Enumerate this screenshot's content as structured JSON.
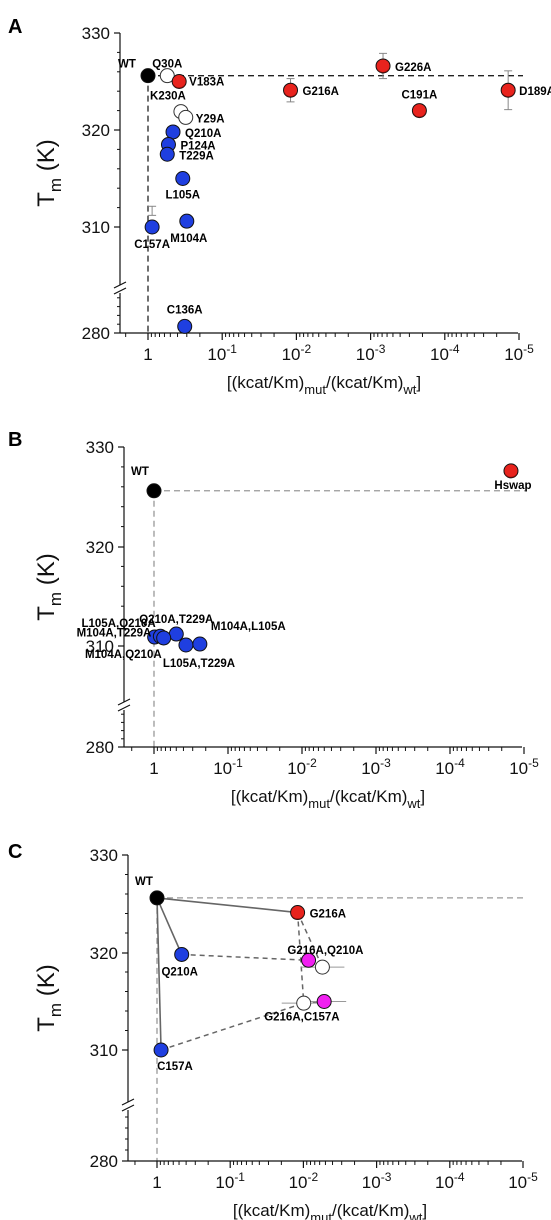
{
  "chart_data": [
    {
      "panel": "A",
      "type": "scatter",
      "xlabel": {
        "pre": "[(kcat/Km)",
        "sub1": "mut",
        "mid": "/(kcat/Km)",
        "sub2": "wt",
        "post": "]"
      },
      "ylabel": {
        "main": "T",
        "sub": "m",
        "unit": "(K)"
      },
      "x_log_scale": "reversed",
      "x_ticks": [
        {
          "base": "1",
          "exp": ""
        },
        {
          "base": "10",
          "exp": "-1"
        },
        {
          "base": "10",
          "exp": "-2"
        },
        {
          "base": "10",
          "exp": "-3"
        },
        {
          "base": "10",
          "exp": "-4"
        },
        {
          "base": "10",
          "exp": "-5"
        }
      ],
      "y_ticks": [
        "330",
        "320",
        "310",
        "280"
      ],
      "y_axis_break": true,
      "reference_lines": {
        "wt_tm": 325.6,
        "wt_x": 1
      },
      "points": [
        {
          "label": "WT",
          "x": 1,
          "y": 325.6,
          "color": "#000000"
        },
        {
          "label": "Q30A",
          "x": 0.55,
          "y": 325.6,
          "color": "#ffffff"
        },
        {
          "label": "V183A",
          "x": 0.38,
          "y": 325.0,
          "color": "#e8231d"
        },
        {
          "label": "K230A",
          "x": 0.36,
          "y": 321.9,
          "color": "#ffffff"
        },
        {
          "label": "Y29A",
          "x": 0.31,
          "y": 321.3,
          "color": "#ffffff"
        },
        {
          "label": "Q210A",
          "x": 0.46,
          "y": 319.8,
          "color": "#1f3fe0"
        },
        {
          "label": "P124A",
          "x": 0.53,
          "y": 318.5,
          "color": "#1f3fe0"
        },
        {
          "label": "T229A",
          "x": 0.55,
          "y": 317.5,
          "color": "#1f3fe0"
        },
        {
          "label": "L105A",
          "x": 0.34,
          "y": 315.0,
          "color": "#1f3fe0"
        },
        {
          "label": "C157A",
          "x": 0.88,
          "y": 310.0,
          "color": "#1f3fe0"
        },
        {
          "label": "M104A",
          "x": 0.3,
          "y": 310.6,
          "color": "#1f3fe0"
        },
        {
          "label": "C136A",
          "x": 0.32,
          "y": 281.5,
          "color": "#1f3fe0"
        },
        {
          "label": "G216A",
          "x": 0.012,
          "y": 324.1,
          "color": "#e8231d"
        },
        {
          "label": "G226A",
          "x": 0.00068,
          "y": 326.6,
          "color": "#e8231d"
        },
        {
          "label": "C191A",
          "x": 0.00022,
          "y": 322.0,
          "color": "#e8231d"
        },
        {
          "label": "D189A",
          "x": 1.4e-05,
          "y": 324.1,
          "color": "#e8231d"
        }
      ]
    },
    {
      "panel": "B",
      "type": "scatter",
      "xlabel": {
        "pre": "[(kcat/Km)",
        "sub1": "mut",
        "mid": "/(kcat/Km)",
        "sub2": "wt",
        "post": "]"
      },
      "ylabel": {
        "main": "T",
        "sub": "m",
        "unit": "(K)"
      },
      "x_log_scale": "reversed",
      "x_ticks": [
        {
          "base": "1",
          "exp": ""
        },
        {
          "base": "10",
          "exp": "-1"
        },
        {
          "base": "10",
          "exp": "-2"
        },
        {
          "base": "10",
          "exp": "-3"
        },
        {
          "base": "10",
          "exp": "-4"
        },
        {
          "base": "10",
          "exp": "-5"
        }
      ],
      "y_ticks": [
        "330",
        "320",
        "310",
        "280"
      ],
      "y_axis_break": true,
      "reference_lines": {
        "wt_tm": 325.6,
        "wt_x": 1
      },
      "points": [
        {
          "label": "WT",
          "x": 1,
          "y": 325.6,
          "color": "#000000"
        },
        {
          "label": "Hswap",
          "x": 1.5e-05,
          "y": 327.6,
          "color": "#e8231d"
        },
        {
          "label": "L105A,Q210A",
          "x": 0.98,
          "y": 310.9,
          "color": "#1f3fe0"
        },
        {
          "label": "Q210A,T229A",
          "x": 0.5,
          "y": 311.2,
          "color": "#1f3fe0"
        },
        {
          "label": "L105A,T229A",
          "x": 0.37,
          "y": 310.1,
          "color": "#1f3fe0"
        },
        {
          "label": "M104A,L105A",
          "x": 0.24,
          "y": 310.2,
          "color": "#1f3fe0"
        },
        {
          "label": "M104A,T229A",
          "x": 0.82,
          "y": 307.0,
          "color": "#1f3fe0"
        },
        {
          "label": "M104A,Q210A",
          "x": 0.74,
          "y": 306.6,
          "color": "#1f3fe0"
        }
      ]
    },
    {
      "panel": "C",
      "type": "scatter",
      "xlabel": {
        "pre": "[(kcat/Km)",
        "sub1": "mut",
        "mid": "/(kcat/Km)",
        "sub2": "wt",
        "post": "]"
      },
      "ylabel": {
        "main": "T",
        "sub": "m",
        "unit": "(K)"
      },
      "x_log_scale": "reversed",
      "x_ticks": [
        {
          "base": "1",
          "exp": ""
        },
        {
          "base": "10",
          "exp": "-1"
        },
        {
          "base": "10",
          "exp": "-2"
        },
        {
          "base": "10",
          "exp": "-3"
        },
        {
          "base": "10",
          "exp": "-4"
        },
        {
          "base": "10",
          "exp": "-5"
        }
      ],
      "y_ticks": [
        "330",
        "320",
        "310",
        "280"
      ],
      "y_axis_break": true,
      "reference_lines": {
        "wt_tm": 325.6,
        "wt_x": 1
      },
      "points": [
        {
          "label": "WT",
          "x": 1,
          "y": 325.6,
          "color": "#000000"
        },
        {
          "label": "G216A",
          "x": 0.012,
          "y": 324.1,
          "color": "#e8231d"
        },
        {
          "label": "Q210A",
          "x": 0.46,
          "y": 319.8,
          "color": "#1f3fe0"
        },
        {
          "label": "C157A",
          "x": 0.88,
          "y": 310.0,
          "color": "#1f3fe0"
        },
        {
          "label": "",
          "x": 0.0085,
          "y": 319.2,
          "color": "#f020f0"
        },
        {
          "label": "G216A,Q210A",
          "x": 0.0055,
          "y": 318.5,
          "color": "#ffffff"
        },
        {
          "label": "",
          "x": 0.0099,
          "y": 308.7,
          "color": "#ffffff"
        },
        {
          "label": "G216A,C157A",
          "x": 0.0052,
          "y": 309.0,
          "color": "#f020f0"
        }
      ],
      "solid_paths": [
        [
          "WT",
          "G216A"
        ],
        [
          "WT",
          "Q210A"
        ],
        [
          "WT",
          "C157A"
        ]
      ]
    }
  ],
  "panel_letters": [
    "A",
    "B",
    "C"
  ]
}
